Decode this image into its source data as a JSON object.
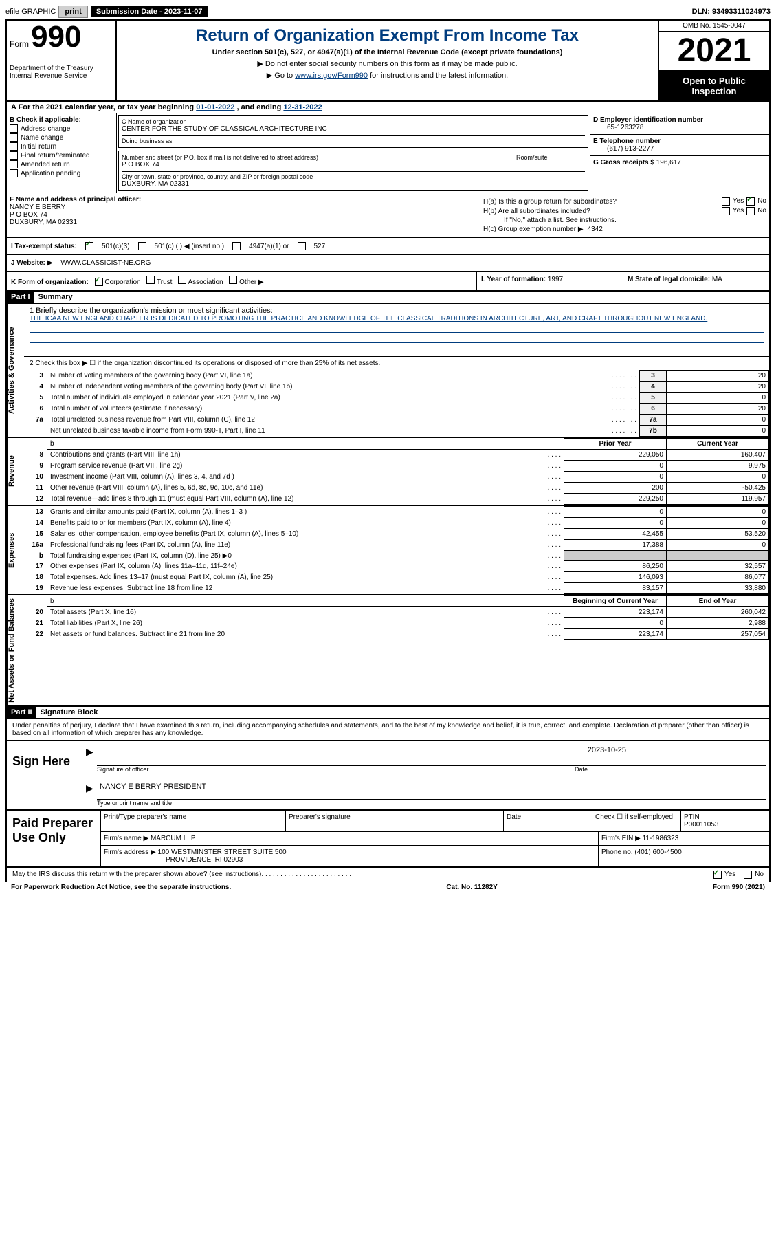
{
  "top": {
    "efile": "efile GRAPHIC",
    "print": "print",
    "submission_label": "Submission Date - 2023-11-07",
    "dln": "DLN: 93493311024973"
  },
  "header": {
    "form_word": "Form",
    "form_num": "990",
    "dept": "Department of the Treasury Internal Revenue Service",
    "title": "Return of Organization Exempt From Income Tax",
    "subtitle": "Under section 501(c), 527, or 4947(a)(1) of the Internal Revenue Code (except private foundations)",
    "note1": "Do not enter social security numbers on this form as it may be made public.",
    "note2_pre": "Go to ",
    "note2_link": "www.irs.gov/Form990",
    "note2_post": " for instructions and the latest information.",
    "omb": "OMB No. 1545-0047",
    "year": "2021",
    "open": "Open to Public Inspection"
  },
  "period": {
    "label": "A For the 2021 calendar year, or tax year beginning ",
    "start": "01-01-2022",
    "mid": " , and ending ",
    "end": "12-31-2022"
  },
  "checkboxes": {
    "header": "B Check if applicable:",
    "items": [
      "Address change",
      "Name change",
      "Initial return",
      "Final return/terminated",
      "Amended return",
      "Application pending"
    ]
  },
  "org": {
    "name_label": "C Name of organization",
    "name": "CENTER FOR THE STUDY OF CLASSICAL ARCHITECTURE INC",
    "dba_label": "Doing business as",
    "dba": "",
    "street_label": "Number and street (or P.O. box if mail is not delivered to street address)",
    "room_label": "Room/suite",
    "street": "P O BOX 74",
    "city_label": "City or town, state or province, country, and ZIP or foreign postal code",
    "city": "DUXBURY, MA  02331"
  },
  "d": {
    "ein_label": "D Employer identification number",
    "ein": "65-1263278",
    "phone_label": "E Telephone number",
    "phone": "(617) 913-2277",
    "gross_label": "G Gross receipts $",
    "gross": "196,617"
  },
  "f": {
    "label": "F Name and address of principal officer:",
    "name": "NANCY E BERRY",
    "street": "P O BOX 74",
    "city": "DUXBURY, MA  02331"
  },
  "h": {
    "a_label": "H(a)  Is this a group return for subordinates?",
    "b_label": "H(b)  Are all subordinates included?",
    "b_note": "If \"No,\" attach a list. See instructions.",
    "c_label": "H(c)  Group exemption number ▶",
    "c_value": "4342"
  },
  "i": {
    "label": "I  Tax-exempt status:",
    "opts": [
      "501(c)(3)",
      "501(c) (  ) ◀ (insert no.)",
      "4947(a)(1) or",
      "527"
    ]
  },
  "j": {
    "label": "J  Website: ▶",
    "value": "WWW.CLASSICIST-NE.ORG"
  },
  "k": {
    "label": "K Form of organization:",
    "opts": [
      "Corporation",
      "Trust",
      "Association",
      "Other ▶"
    ],
    "l_label": "L Year of formation:",
    "l_value": "1997",
    "m_label": "M State of legal domicile:",
    "m_value": "MA"
  },
  "parts": {
    "p1": "Part I",
    "p1_title": "Summary",
    "p2": "Part II",
    "p2_title": "Signature Block"
  },
  "mission": {
    "label": "1  Briefly describe the organization's mission or most significant activities:",
    "text": "THE ICAA NEW ENGLAND CHAPTER IS DEDICATED TO PROMOTING THE PRACTICE AND KNOWLEDGE OF THE CLASSICAL TRADITIONS IN ARCHITECTURE, ART, AND CRAFT THROUGHOUT NEW ENGLAND."
  },
  "line2": "2  Check this box ▶ ☐ if the organization discontinued its operations or disposed of more than 25% of its net assets.",
  "side_labels": {
    "gov": "Activities & Governance",
    "rev": "Revenue",
    "exp": "Expenses",
    "net": "Net Assets or Fund Balances"
  },
  "gov_lines": [
    {
      "n": "3",
      "desc": "Number of voting members of the governing body (Part VI, line 1a)",
      "box": "3",
      "val": "20"
    },
    {
      "n": "4",
      "desc": "Number of independent voting members of the governing body (Part VI, line 1b)",
      "box": "4",
      "val": "20"
    },
    {
      "n": "5",
      "desc": "Total number of individuals employed in calendar year 2021 (Part V, line 2a)",
      "box": "5",
      "val": "0"
    },
    {
      "n": "6",
      "desc": "Total number of volunteers (estimate if necessary)",
      "box": "6",
      "val": "20"
    },
    {
      "n": "7a",
      "desc": "Total unrelated business revenue from Part VIII, column (C), line 12",
      "box": "7a",
      "val": "0"
    },
    {
      "n": "",
      "desc": "Net unrelated business taxable income from Form 990-T, Part I, line 11",
      "box": "7b",
      "val": "0"
    }
  ],
  "fin_headers": {
    "prior": "Prior Year",
    "current": "Current Year",
    "beg": "Beginning of Current Year",
    "end": "End of Year"
  },
  "rev_lines": [
    {
      "n": "8",
      "desc": "Contributions and grants (Part VIII, line 1h)",
      "p": "229,050",
      "c": "160,407"
    },
    {
      "n": "9",
      "desc": "Program service revenue (Part VIII, line 2g)",
      "p": "0",
      "c": "9,975"
    },
    {
      "n": "10",
      "desc": "Investment income (Part VIII, column (A), lines 3, 4, and 7d )",
      "p": "0",
      "c": "0"
    },
    {
      "n": "11",
      "desc": "Other revenue (Part VIII, column (A), lines 5, 6d, 8c, 9c, 10c, and 11e)",
      "p": "200",
      "c": "-50,425"
    },
    {
      "n": "12",
      "desc": "Total revenue—add lines 8 through 11 (must equal Part VIII, column (A), line 12)",
      "p": "229,250",
      "c": "119,957"
    }
  ],
  "exp_lines": [
    {
      "n": "13",
      "desc": "Grants and similar amounts paid (Part IX, column (A), lines 1–3 )",
      "p": "0",
      "c": "0"
    },
    {
      "n": "14",
      "desc": "Benefits paid to or for members (Part IX, column (A), line 4)",
      "p": "0",
      "c": "0"
    },
    {
      "n": "15",
      "desc": "Salaries, other compensation, employee benefits (Part IX, column (A), lines 5–10)",
      "p": "42,455",
      "c": "53,520"
    },
    {
      "n": "16a",
      "desc": "Professional fundraising fees (Part IX, column (A), line 11e)",
      "p": "17,388",
      "c": "0"
    },
    {
      "n": "b",
      "desc": "Total fundraising expenses (Part IX, column (D), line 25) ▶0",
      "p": "GRAY",
      "c": "GRAY"
    },
    {
      "n": "17",
      "desc": "Other expenses (Part IX, column (A), lines 11a–11d, 11f–24e)",
      "p": "86,250",
      "c": "32,557"
    },
    {
      "n": "18",
      "desc": "Total expenses. Add lines 13–17 (must equal Part IX, column (A), line 25)",
      "p": "146,093",
      "c": "86,077"
    },
    {
      "n": "19",
      "desc": "Revenue less expenses. Subtract line 18 from line 12",
      "p": "83,157",
      "c": "33,880"
    }
  ],
  "net_lines": [
    {
      "n": "20",
      "desc": "Total assets (Part X, line 16)",
      "p": "223,174",
      "c": "260,042"
    },
    {
      "n": "21",
      "desc": "Total liabilities (Part X, line 26)",
      "p": "0",
      "c": "2,988"
    },
    {
      "n": "22",
      "desc": "Net assets or fund balances. Subtract line 21 from line 20",
      "p": "223,174",
      "c": "257,054"
    }
  ],
  "penalties": "Under penalties of perjury, I declare that I have examined this return, including accompanying schedules and statements, and to the best of my knowledge and belief, it is true, correct, and complete. Declaration of preparer (other than officer) is based on all information of which preparer has any knowledge.",
  "sign": {
    "label": "Sign Here",
    "sig_caption": "Signature of officer",
    "date": "2023-10-25",
    "date_caption": "Date",
    "name": "NANCY E BERRY PRESIDENT",
    "name_caption": "Type or print name and title"
  },
  "preparer": {
    "label": "Paid Preparer Use Only",
    "headers": {
      "name": "Print/Type preparer's name",
      "sig": "Preparer's signature",
      "date": "Date",
      "check": "Check ☐ if self-employed",
      "ptin_label": "PTIN",
      "ptin": "P00011053"
    },
    "firm_label": "Firm's name   ▶",
    "firm": "MARCUM LLP",
    "ein_label": "Firm's EIN ▶",
    "ein": "11-1986323",
    "addr_label": "Firm's address ▶",
    "addr1": "100 WESTMINSTER STREET SUITE 500",
    "addr2": "PROVIDENCE, RI  02903",
    "phone_label": "Phone no.",
    "phone": "(401) 600-4500"
  },
  "discuss": "May the IRS discuss this return with the preparer shown above? (see instructions)",
  "footer": {
    "left": "For Paperwork Reduction Act Notice, see the separate instructions.",
    "mid": "Cat. No. 11282Y",
    "right": "Form 990 (2021)"
  }
}
